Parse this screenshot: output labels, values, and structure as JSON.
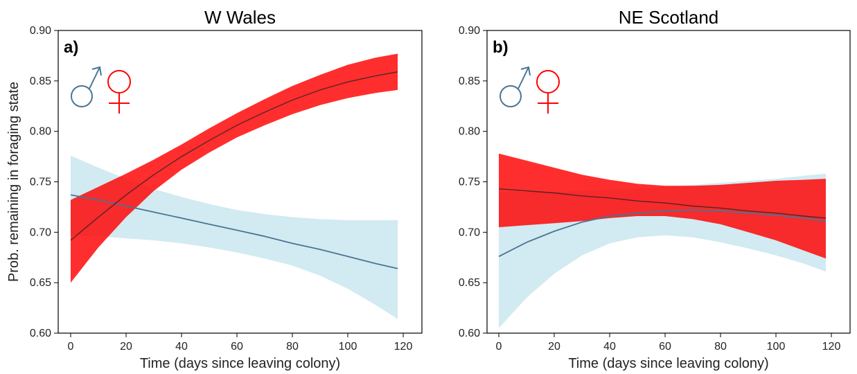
{
  "colors": {
    "male": "#4a7494",
    "male_band": "#add8e6",
    "female": "#ff0000",
    "female_line": "#222222"
  },
  "icons": {
    "male": "male-symbol-icon",
    "female": "female-symbol-icon"
  },
  "chart_data": [
    {
      "type": "line",
      "panel_label": "a)",
      "title": "W Wales",
      "xlabel": "Time (days since leaving colony)",
      "ylabel": "Prob. remaining in foraging state",
      "xlim": [
        0,
        120
      ],
      "ylim": [
        0.6,
        0.9
      ],
      "x_ticks": [
        0,
        20,
        40,
        60,
        80,
        100,
        120
      ],
      "y_ticks": [
        0.6,
        0.65,
        0.7,
        0.75,
        0.8,
        0.85,
        0.9
      ],
      "x_tick_labels": [
        "0",
        "20",
        "40",
        "60",
        "80",
        "100",
        "120"
      ],
      "y_tick_labels": [
        "0.60",
        "0.65",
        "0.70",
        "0.75",
        "0.80",
        "0.85",
        "0.90"
      ],
      "grid": false,
      "series": [
        {
          "key": "female",
          "x": [
            0,
            10,
            20,
            30,
            40,
            50,
            60,
            70,
            80,
            90,
            100,
            110,
            118
          ],
          "y": [
            0.692,
            0.715,
            0.737,
            0.757,
            0.775,
            0.791,
            0.806,
            0.819,
            0.831,
            0.841,
            0.849,
            0.855,
            0.859
          ],
          "lower": [
            0.65,
            0.685,
            0.715,
            0.741,
            0.762,
            0.779,
            0.794,
            0.806,
            0.817,
            0.826,
            0.833,
            0.838,
            0.841
          ],
          "upper": [
            0.732,
            0.745,
            0.758,
            0.772,
            0.787,
            0.803,
            0.818,
            0.832,
            0.845,
            0.856,
            0.866,
            0.873,
            0.877
          ]
        },
        {
          "key": "male",
          "x": [
            0,
            10,
            20,
            30,
            40,
            50,
            60,
            70,
            80,
            90,
            100,
            110,
            118
          ],
          "y": [
            0.737,
            0.732,
            0.726,
            0.72,
            0.714,
            0.708,
            0.702,
            0.696,
            0.689,
            0.683,
            0.676,
            0.669,
            0.664
          ],
          "lower": [
            0.697,
            0.696,
            0.694,
            0.692,
            0.689,
            0.685,
            0.68,
            0.674,
            0.667,
            0.657,
            0.644,
            0.628,
            0.614
          ],
          "upper": [
            0.776,
            0.764,
            0.753,
            0.743,
            0.735,
            0.728,
            0.722,
            0.718,
            0.715,
            0.713,
            0.712,
            0.712,
            0.712
          ]
        }
      ]
    },
    {
      "type": "line",
      "panel_label": "b)",
      "title": "NE Scotland",
      "xlabel": "Time (days since leaving colony)",
      "ylabel": "",
      "xlim": [
        0,
        120
      ],
      "ylim": [
        0.6,
        0.9
      ],
      "x_ticks": [
        0,
        20,
        40,
        60,
        80,
        100,
        120
      ],
      "y_ticks": [
        0.6,
        0.65,
        0.7,
        0.75,
        0.8,
        0.85,
        0.9
      ],
      "x_tick_labels": [
        "0",
        "20",
        "40",
        "60",
        "80",
        "100",
        "120"
      ],
      "y_tick_labels": [
        "0.60",
        "0.65",
        "0.70",
        "0.75",
        "0.80",
        "0.85",
        "0.90"
      ],
      "grid": false,
      "series": [
        {
          "key": "female",
          "x": [
            0,
            10,
            20,
            30,
            40,
            50,
            60,
            70,
            80,
            90,
            100,
            110,
            118
          ],
          "y": [
            0.743,
            0.741,
            0.739,
            0.736,
            0.734,
            0.731,
            0.729,
            0.726,
            0.724,
            0.721,
            0.719,
            0.716,
            0.714
          ],
          "lower": [
            0.705,
            0.707,
            0.709,
            0.711,
            0.714,
            0.716,
            0.716,
            0.713,
            0.708,
            0.7,
            0.692,
            0.682,
            0.674
          ],
          "upper": [
            0.778,
            0.771,
            0.764,
            0.757,
            0.752,
            0.748,
            0.746,
            0.746,
            0.747,
            0.749,
            0.751,
            0.752,
            0.753
          ]
        },
        {
          "key": "male",
          "x": [
            0,
            10,
            20,
            30,
            40,
            50,
            60,
            70,
            80,
            90,
            100,
            110,
            118
          ],
          "y": [
            0.676,
            0.69,
            0.701,
            0.71,
            0.716,
            0.719,
            0.721,
            0.722,
            0.721,
            0.719,
            0.717,
            0.714,
            0.711
          ],
          "lower": [
            0.605,
            0.635,
            0.659,
            0.677,
            0.689,
            0.695,
            0.697,
            0.695,
            0.69,
            0.684,
            0.677,
            0.669,
            0.661
          ],
          "upper": [
            0.74,
            0.74,
            0.74,
            0.741,
            0.742,
            0.743,
            0.745,
            0.747,
            0.749,
            0.751,
            0.753,
            0.756,
            0.758
          ]
        }
      ]
    }
  ]
}
